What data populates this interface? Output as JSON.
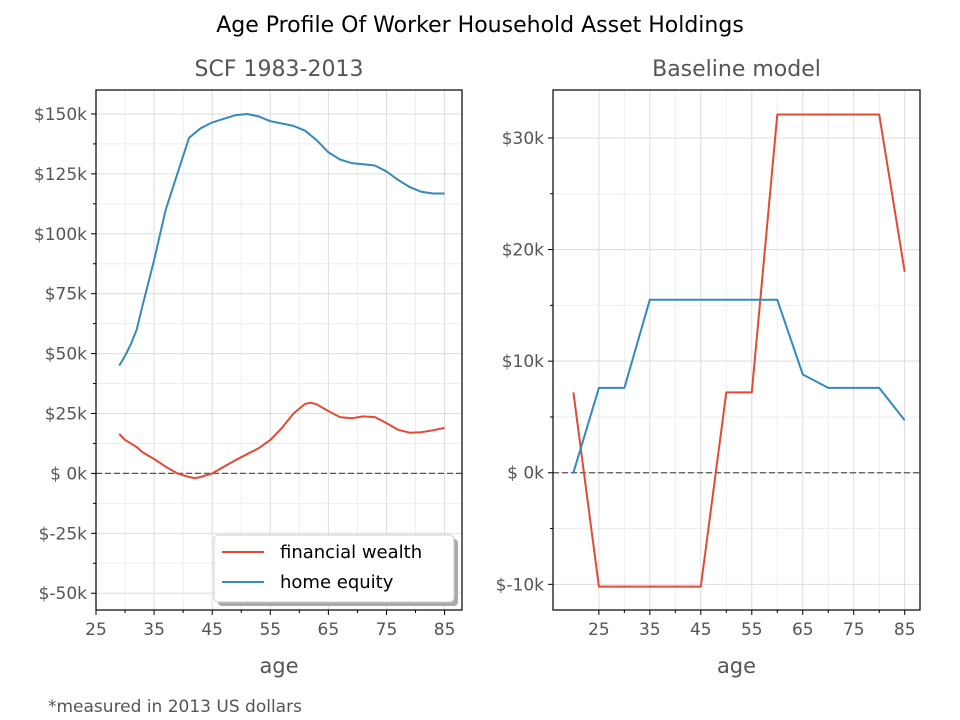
{
  "figure": {
    "title": "Age Profile Of Worker Household Asset Holdings",
    "footnote": "*measured in 2013 US dollars",
    "colors": {
      "financial_wealth": "#E24A33",
      "home_equity": "#348ABD",
      "zero_line": "#555555",
      "grid": "#dddddd"
    }
  },
  "chart_data": [
    {
      "type": "line",
      "title": "SCF 1983-2013",
      "xlabel": "age",
      "ylabel": "",
      "xlim": [
        25,
        88
      ],
      "ylim": [
        -57000,
        160000
      ],
      "xticks": [
        25,
        35,
        45,
        55,
        65,
        75,
        85
      ],
      "xtick_labels": [
        "25",
        "35",
        "45",
        "55",
        "65",
        "75",
        "85"
      ],
      "yticks": [
        -50000,
        -25000,
        0,
        25000,
        50000,
        75000,
        100000,
        125000,
        150000
      ],
      "ytick_labels": [
        "$-50k",
        "$-25k",
        "$ 0k",
        "$25k",
        "$50k",
        "$75k",
        "$100k",
        "$125k",
        "$150k"
      ],
      "zero_line": true,
      "grid": true,
      "legend": {
        "position": "lower right",
        "entries": [
          "financial wealth",
          "home equity"
        ]
      },
      "series": [
        {
          "name": "financial wealth",
          "x": [
            29,
            30,
            32,
            33,
            35,
            37,
            39,
            41,
            42,
            43,
            45,
            47,
            49,
            51,
            53,
            55,
            57,
            59,
            61,
            62,
            63,
            65,
            67,
            69,
            71,
            73,
            75,
            77,
            79,
            81,
            83,
            85
          ],
          "y": [
            16500,
            14000,
            11000,
            8800,
            6000,
            2800,
            0,
            -1500,
            -2000,
            -1500,
            0,
            2800,
            5500,
            8000,
            10500,
            14000,
            19000,
            25000,
            29000,
            29500,
            28800,
            26000,
            23500,
            23000,
            23800,
            23500,
            21000,
            18200,
            17000,
            17200,
            18000,
            19000
          ]
        },
        {
          "name": "home equity",
          "x": [
            29,
            30,
            31,
            32,
            33,
            35,
            37,
            39,
            41,
            43,
            45,
            47,
            49,
            51,
            53,
            55,
            57,
            59,
            61,
            63,
            65,
            67,
            69,
            71,
            73,
            75,
            77,
            79,
            81,
            83,
            85
          ],
          "y": [
            45000,
            49000,
            54000,
            60000,
            70000,
            89000,
            110000,
            125000,
            140000,
            144000,
            146500,
            148000,
            149500,
            150000,
            149000,
            147000,
            146000,
            145000,
            143000,
            139000,
            134000,
            131000,
            129500,
            129000,
            128500,
            126000,
            122500,
            119500,
            117500,
            116800,
            116800
          ]
        }
      ]
    },
    {
      "type": "line",
      "title": "Baseline model",
      "xlabel": "age",
      "ylabel": "",
      "xlim": [
        16,
        88
      ],
      "ylim": [
        -12300,
        34300
      ],
      "xticks": [
        25,
        35,
        45,
        55,
        65,
        75,
        85
      ],
      "xtick_labels": [
        "25",
        "35",
        "45",
        "55",
        "65",
        "75",
        "85"
      ],
      "yticks": [
        -10000,
        0,
        10000,
        20000,
        30000
      ],
      "ytick_labels": [
        "$-10k",
        "$ 0k",
        "$10k",
        "$20k",
        "$30k"
      ],
      "zero_line": true,
      "grid": true,
      "series": [
        {
          "name": "financial wealth",
          "x": [
            20,
            25,
            30,
            35,
            40,
            45,
            50,
            55,
            60,
            65,
            70,
            75,
            80,
            85
          ],
          "y": [
            7200,
            -10200,
            -10200,
            -10200,
            -10200,
            -10200,
            7200,
            7200,
            32100,
            32100,
            32100,
            32100,
            32100,
            18000
          ]
        },
        {
          "name": "home equity",
          "x": [
            20,
            25,
            30,
            35,
            40,
            45,
            50,
            55,
            60,
            65,
            70,
            75,
            80,
            85
          ],
          "y": [
            0,
            7600,
            7600,
            15500,
            15500,
            15500,
            15500,
            15500,
            15500,
            8800,
            7600,
            7600,
            7600,
            4700
          ]
        }
      ]
    }
  ]
}
